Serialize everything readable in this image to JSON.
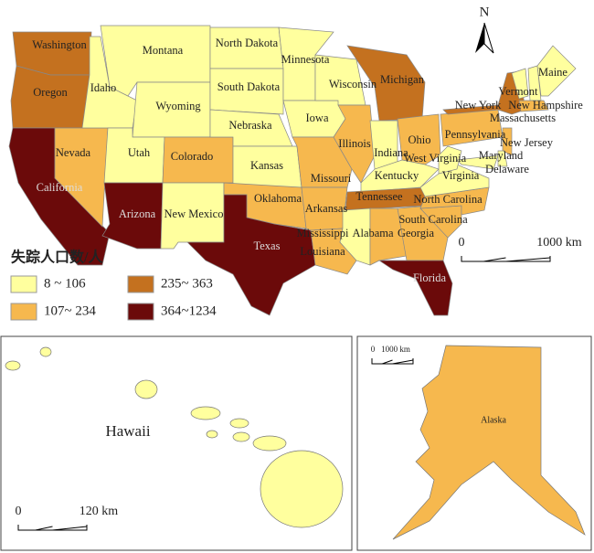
{
  "north_arrow": "N",
  "legend": {
    "title": "失踪人口数/人",
    "classes": [
      {
        "label": "8 ~ 106",
        "color": "#ffff9e"
      },
      {
        "label": "107~ 234",
        "color": "#f6b84e"
      },
      {
        "label": "235~ 363",
        "color": "#c4711f"
      },
      {
        "label": "364~1234",
        "color": "#6b0a0a"
      }
    ]
  },
  "states": [
    {
      "name": "Washington",
      "class": 2
    },
    {
      "name": "Oregon",
      "class": 2
    },
    {
      "name": "California",
      "class": 3
    },
    {
      "name": "Nevada",
      "class": 1
    },
    {
      "name": "Idaho",
      "class": 0
    },
    {
      "name": "Montana",
      "class": 0
    },
    {
      "name": "Wyoming",
      "class": 0
    },
    {
      "name": "Utah",
      "class": 0
    },
    {
      "name": "Colorado",
      "class": 1
    },
    {
      "name": "Arizona",
      "class": 3
    },
    {
      "name": "New Mexico",
      "class": 0
    },
    {
      "name": "North Dakota",
      "class": 0
    },
    {
      "name": "South Dakota",
      "class": 0
    },
    {
      "name": "Nebraska",
      "class": 0
    },
    {
      "name": "Kansas",
      "class": 0
    },
    {
      "name": "Oklahoma",
      "class": 1
    },
    {
      "name": "Texas",
      "class": 3
    },
    {
      "name": "Minnesota",
      "class": 0
    },
    {
      "name": "Iowa",
      "class": 0
    },
    {
      "name": "Missouri",
      "class": 1
    },
    {
      "name": "Arkansas",
      "class": 1
    },
    {
      "name": "Louisiana",
      "class": 1
    },
    {
      "name": "Wisconsin",
      "class": 0
    },
    {
      "name": "Illinois",
      "class": 1
    },
    {
      "name": "Michigan",
      "class": 2
    },
    {
      "name": "Indiana",
      "class": 0
    },
    {
      "name": "Ohio",
      "class": 1
    },
    {
      "name": "Kentucky",
      "class": 0
    },
    {
      "name": "Tennessee",
      "class": 2
    },
    {
      "name": "Mississippi",
      "class": 0
    },
    {
      "name": "Alabama",
      "class": 1
    },
    {
      "name": "Georgia",
      "class": 1
    },
    {
      "name": "Florida",
      "class": 3
    },
    {
      "name": "South Carolina",
      "class": 1
    },
    {
      "name": "North Carolina",
      "class": 1
    },
    {
      "name": "Virginia",
      "class": 0
    },
    {
      "name": "West Virginia",
      "class": 0
    },
    {
      "name": "Pennsylvania",
      "class": 1
    },
    {
      "name": "New York",
      "class": 2
    },
    {
      "name": "Vermont",
      "class": 0
    },
    {
      "name": "New Hampshire",
      "class": 0
    },
    {
      "name": "Maine",
      "class": 0
    },
    {
      "name": "Massachusetts",
      "class": 1
    },
    {
      "name": "New Jersey",
      "class": 1
    },
    {
      "name": "Maryland",
      "class": 0
    },
    {
      "name": "Delaware",
      "class": 0
    }
  ],
  "hawaii": {
    "label": "Hawaii",
    "class": 0
  },
  "alaska": {
    "label": "Alaska",
    "class": 1
  },
  "scale_bars": {
    "main": [
      "0",
      "1000 km"
    ],
    "hawaii": [
      "0",
      "120 km"
    ],
    "alaska": [
      "0",
      "1000 km"
    ]
  }
}
